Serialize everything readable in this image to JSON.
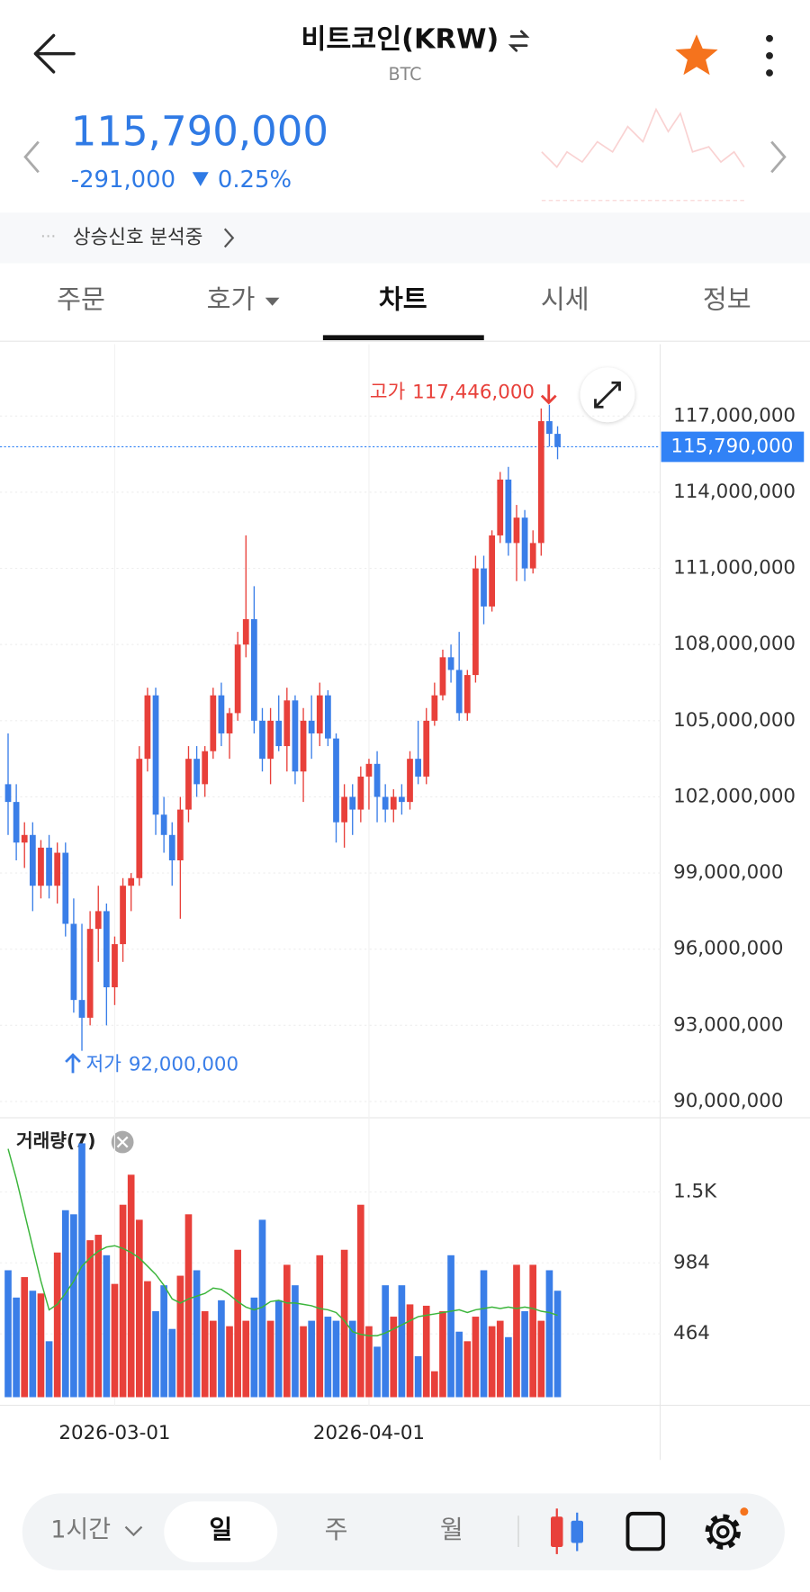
{
  "header": {
    "title": "비트코인(KRW)",
    "subtitle": "BTC"
  },
  "price": {
    "current": "115,790,000",
    "change": "-291,000",
    "change_rate": "0.25%"
  },
  "signal": {
    "text": "상승신호 분석중"
  },
  "tabs": [
    "주문",
    "호가",
    "차트",
    "시세",
    "정보"
  ],
  "active_tab": 2,
  "chart_data": {
    "type": "candlestick",
    "categories": [
      null,
      null,
      null,
      null,
      null,
      null,
      null,
      null,
      null,
      null,
      null,
      null,
      null,
      "2026-03-01",
      null,
      null,
      null,
      null,
      null,
      null,
      null,
      null,
      null,
      null,
      null,
      null,
      null,
      null,
      null,
      null,
      null,
      null,
      null,
      null,
      null,
      null,
      null,
      null,
      null,
      null,
      null,
      null,
      null,
      null,
      "2026-04-01",
      null,
      null,
      null,
      null,
      null,
      null,
      null,
      null,
      null,
      null,
      null,
      null,
      null,
      null,
      null,
      null,
      null,
      null,
      null,
      null,
      null,
      null,
      null
    ],
    "open": [
      102500000,
      101800000,
      100200000,
      100500000,
      98500000,
      100000000,
      98500000,
      99800000,
      97000000,
      94000000,
      93300000,
      96800000,
      97500000,
      94500000,
      96200000,
      98500000,
      98800000,
      103500000,
      106000000,
      101300000,
      100500000,
      99500000,
      101500000,
      103500000,
      102500000,
      103800000,
      106000000,
      104500000,
      105300000,
      108000000,
      109000000,
      105000000,
      103500000,
      105000000,
      104000000,
      105800000,
      103000000,
      105000000,
      104500000,
      106000000,
      104300000,
      101000000,
      102000000,
      101500000,
      102800000,
      103300000,
      102000000,
      101500000,
      102000000,
      101800000,
      103500000,
      102800000,
      105000000,
      106000000,
      107500000,
      107000000,
      105300000,
      106800000,
      111000000,
      109500000,
      112300000,
      114500000,
      112000000,
      113000000,
      111000000,
      112000000,
      116800000,
      116300000
    ],
    "high": [
      104500000,
      102500000,
      101000000,
      101000000,
      100300000,
      100500000,
      100200000,
      100200000,
      98000000,
      97000000,
      97500000,
      98500000,
      97800000,
      96500000,
      98800000,
      99000000,
      104000000,
      106300000,
      106300000,
      102000000,
      101000000,
      102000000,
      104000000,
      104000000,
      104000000,
      106300000,
      106500000,
      105500000,
      108500000,
      112300000,
      110300000,
      105500000,
      105500000,
      106000000,
      106300000,
      106000000,
      105500000,
      106000000,
      106500000,
      106200000,
      104500000,
      102500000,
      102500000,
      103200000,
      103500000,
      103800000,
      102500000,
      102300000,
      102500000,
      103800000,
      105000000,
      105500000,
      106500000,
      107800000,
      108000000,
      108500000,
      107000000,
      111500000,
      111500000,
      112500000,
      114800000,
      115000000,
      113500000,
      113300000,
      112500000,
      117300000,
      117446000,
      116600000
    ],
    "low": [
      100500000,
      99500000,
      99200000,
      97500000,
      98000000,
      98000000,
      97800000,
      96500000,
      93500000,
      92000000,
      93000000,
      95500000,
      93000000,
      93800000,
      95500000,
      97500000,
      98500000,
      103000000,
      100500000,
      99800000,
      98500000,
      97200000,
      101000000,
      102000000,
      102000000,
      103500000,
      104000000,
      103500000,
      105000000,
      107500000,
      104500000,
      103000000,
      102500000,
      103800000,
      103000000,
      102500000,
      101800000,
      103500000,
      104000000,
      104000000,
      100200000,
      100000000,
      100500000,
      101000000,
      101500000,
      101000000,
      101000000,
      101000000,
      101300000,
      101500000,
      102500000,
      102500000,
      104800000,
      105800000,
      106500000,
      105000000,
      105000000,
      106500000,
      108800000,
      109300000,
      112000000,
      111500000,
      110500000,
      110500000,
      110800000,
      111500000,
      115800000,
      115300000
    ],
    "close": [
      101800000,
      100200000,
      100500000,
      98500000,
      100000000,
      98500000,
      99800000,
      97000000,
      94000000,
      93300000,
      96800000,
      97500000,
      94500000,
      96200000,
      98500000,
      98800000,
      103500000,
      106000000,
      101300000,
      100500000,
      99500000,
      101500000,
      103500000,
      102500000,
      103800000,
      106000000,
      104500000,
      105300000,
      108000000,
      109000000,
      105000000,
      103500000,
      105000000,
      104000000,
      105800000,
      103000000,
      105000000,
      104500000,
      106000000,
      104300000,
      101000000,
      102000000,
      101500000,
      102800000,
      103300000,
      102000000,
      101500000,
      102000000,
      101800000,
      103500000,
      102800000,
      105000000,
      106000000,
      107500000,
      107000000,
      105300000,
      106800000,
      111000000,
      109500000,
      112300000,
      114500000,
      112000000,
      113000000,
      111000000,
      112000000,
      116800000,
      116300000,
      115790000
    ],
    "up_color": "#e8403a",
    "down_color": "#3a7ee8",
    "ylim": [
      89520000,
      119830000
    ],
    "yticks": [
      {
        "value": 90000000,
        "label": "90,000,000"
      },
      {
        "value": 93000000,
        "label": "93,000,000"
      },
      {
        "value": 96000000,
        "label": "96,000,000"
      },
      {
        "value": 99000000,
        "label": "99,000,000"
      },
      {
        "value": 102000000,
        "label": "102,000,000"
      },
      {
        "value": 105000000,
        "label": "105,000,000"
      },
      {
        "value": 108000000,
        "label": "108,000,000"
      },
      {
        "value": 111000000,
        "label": "111,000,000"
      },
      {
        "value": 114000000,
        "label": "114,000,000"
      },
      {
        "value": 117000000,
        "label": "117,000,000"
      }
    ],
    "grid": true,
    "last_price": {
      "value": 115790000,
      "label": "115,790,000",
      "color": "#3182f6"
    },
    "annotations": {
      "high": {
        "text": "고가",
        "value": 117446000,
        "label": "117,446,000"
      },
      "low": {
        "text": "저가",
        "value": 92000000,
        "label": "92,000,000"
      }
    },
    "volume": {
      "name": "거래량(7)",
      "values": [
        930,
        730,
        880,
        780,
        760,
        410,
        1060,
        1370,
        1340,
        1860,
        1150,
        1190,
        1040,
        830,
        1410,
        1630,
        1300,
        850,
        630,
        820,
        500,
        890,
        1340,
        930,
        630,
        560,
        710,
        520,
        1080,
        560,
        730,
        1300,
        560,
        710,
        970,
        820,
        520,
        560,
        1040,
        590,
        560,
        1080,
        560,
        1410,
        520,
        370,
        820,
        590,
        820,
        680,
        300,
        670,
        190,
        630,
        1040,
        480,
        410,
        590,
        930,
        520,
        560,
        440,
        970,
        630,
        970,
        560,
        930,
        780
      ],
      "ma_values": [
        1820,
        1600,
        1350,
        1100,
        850,
        640,
        680,
        760,
        850,
        960,
        1020,
        1070,
        1100,
        1110,
        1090,
        1060,
        1020,
        960,
        900,
        820,
        720,
        690,
        720,
        740,
        760,
        800,
        790,
        750,
        700,
        660,
        640,
        660,
        700,
        710,
        690,
        690,
        680,
        670,
        650,
        640,
        620,
        560,
        480,
        460,
        450,
        450,
        470,
        500,
        530,
        560,
        590,
        600,
        610,
        620,
        630,
        640,
        620,
        640,
        650,
        660,
        650,
        660,
        650,
        660,
        650,
        630,
        620,
        600
      ],
      "ma_color": "#3bb53b",
      "ylim": [
        0,
        2040
      ],
      "yticks": [
        464,
        984,
        {
          "value": 1504,
          "label": "1.5K"
        }
      ]
    }
  },
  "toolbar": {
    "interval": "1시간",
    "periods": [
      "일",
      "주",
      "월"
    ],
    "active_period": 0
  }
}
